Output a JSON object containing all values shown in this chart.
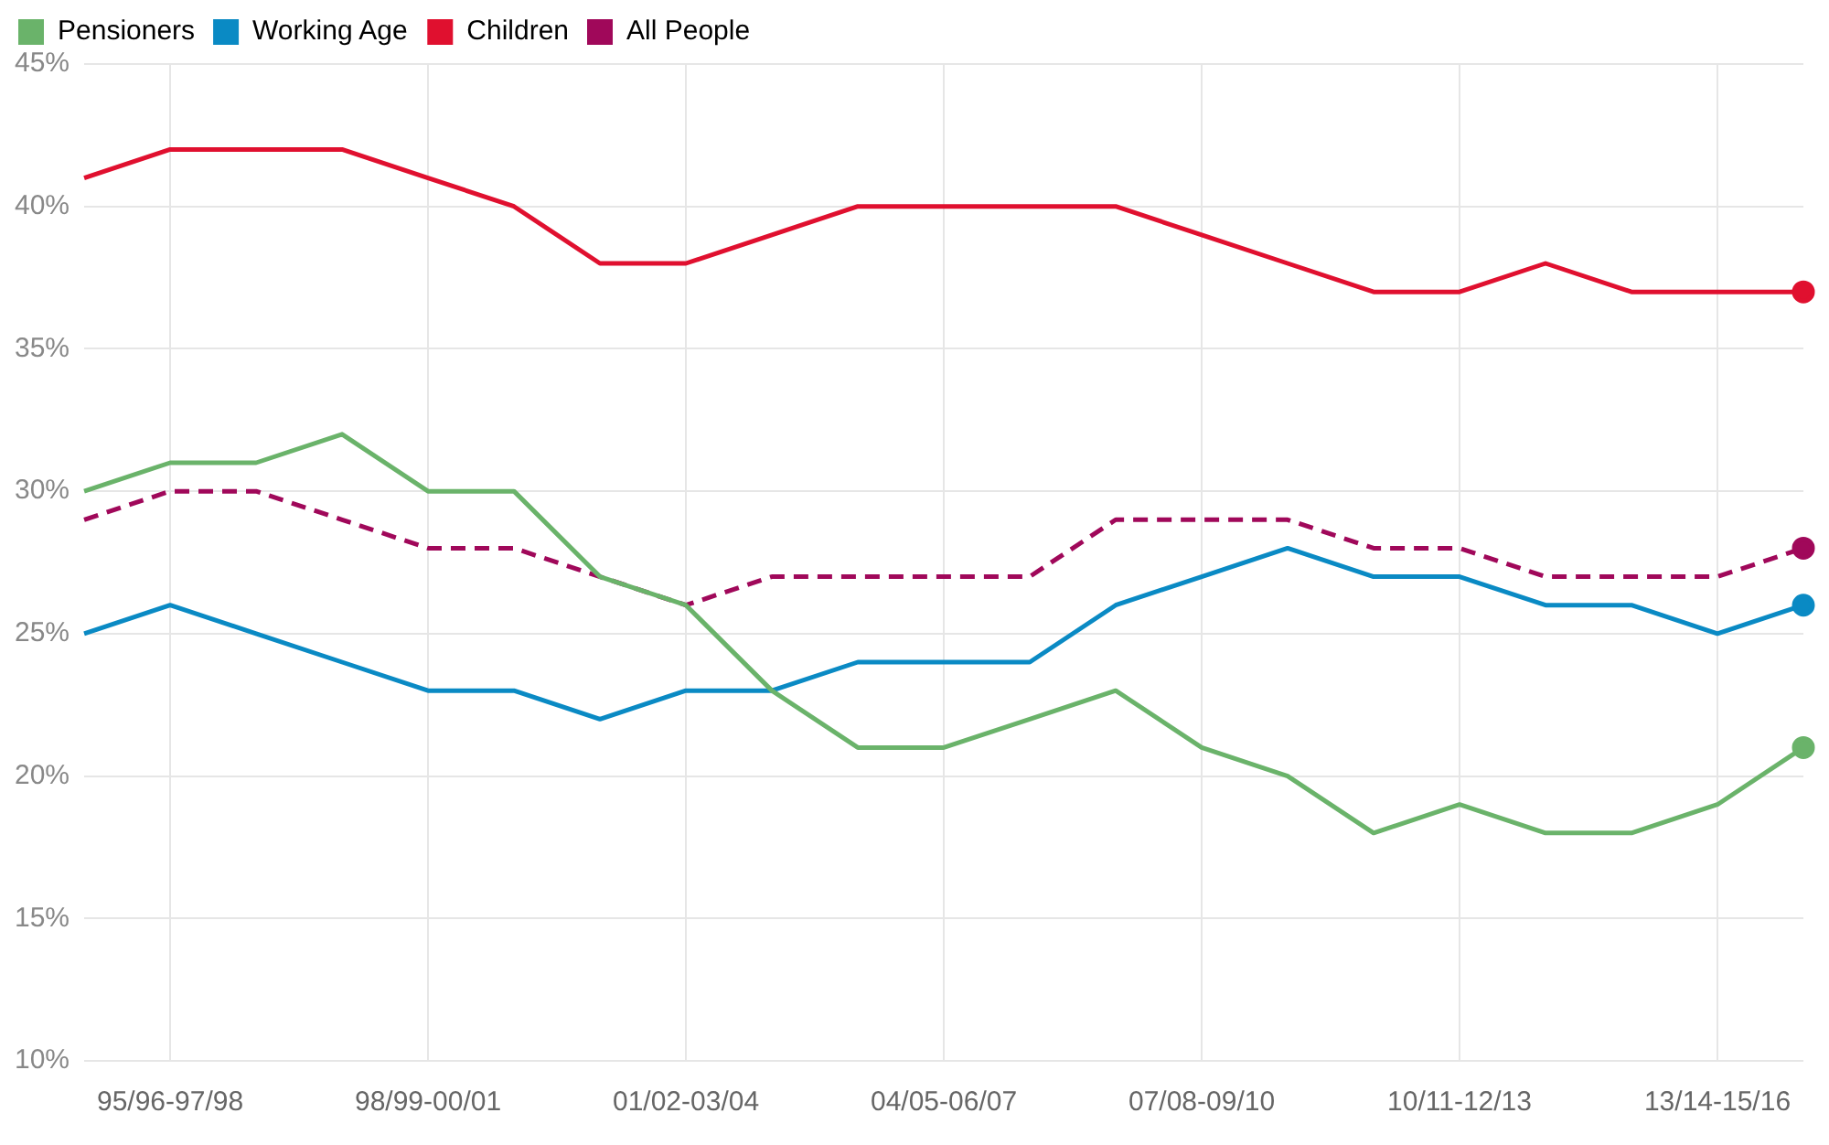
{
  "chart_data": {
    "type": "line",
    "categories": [
      null,
      "95/96-97/98",
      null,
      null,
      "98/99-00/01",
      null,
      null,
      "01/02-03/04",
      null,
      null,
      "04/05-06/07",
      null,
      null,
      "07/08-09/10",
      null,
      null,
      "10/11-12/13",
      null,
      null,
      "13/14-15/16",
      null
    ],
    "series": [
      {
        "name": "Pensioners",
        "color": "#6ab36a",
        "values": [
          30,
          31,
          31,
          32,
          30,
          30,
          27,
          26,
          23,
          21,
          21,
          22,
          23,
          21,
          20,
          18,
          19,
          18,
          18,
          19,
          21
        ]
      },
      {
        "name": "Working Age",
        "color": "#0a8ac4",
        "values": [
          25,
          26,
          25,
          24,
          23,
          23,
          22,
          23,
          23,
          24,
          24,
          24,
          26,
          27,
          28,
          27,
          27,
          26,
          26,
          25,
          26
        ]
      },
      {
        "name": "Children",
        "color": "#e0102f",
        "values": [
          41,
          42,
          42,
          42,
          41,
          40,
          38,
          38,
          39,
          40,
          40,
          40,
          40,
          39,
          38,
          37,
          37,
          38,
          37,
          37,
          37
        ]
      },
      {
        "name": "All People",
        "color": "#a0085a",
        "line_style": "dashed",
        "values": [
          29,
          30,
          30,
          29,
          28,
          28,
          27,
          26,
          27,
          27,
          27,
          27,
          29,
          29,
          29,
          28,
          28,
          27,
          27,
          27,
          28
        ]
      }
    ],
    "ylim": [
      10,
      45
    ],
    "yticks": [
      {
        "value": 10,
        "label": "10%"
      },
      {
        "value": 15,
        "label": "15%"
      },
      {
        "value": 20,
        "label": "20%"
      },
      {
        "value": 25,
        "label": "25%"
      },
      {
        "value": 30,
        "label": "30%"
      },
      {
        "value": 35,
        "label": "35%"
      },
      {
        "value": 40,
        "label": "40%"
      },
      {
        "value": 45,
        "label": "45%"
      }
    ],
    "grid": true,
    "legend": "top left"
  }
}
